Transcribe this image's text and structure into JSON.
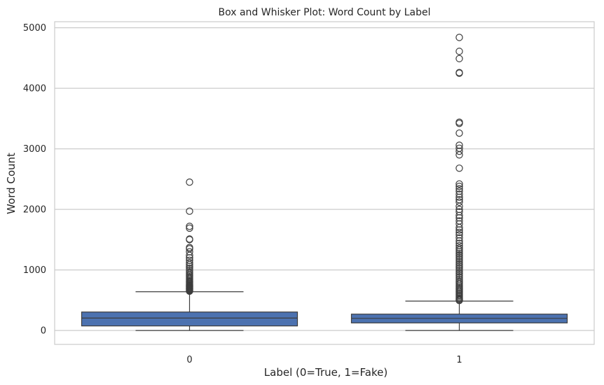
{
  "chart_data": {
    "type": "box",
    "title": "Box and Whisker Plot: Word Count by Label",
    "xlabel": "Label (0=True, 1=Fake)",
    "ylabel": "Word Count",
    "ylim": [
      -230,
      5100
    ],
    "yticks": [
      0,
      1000,
      2000,
      3000,
      4000,
      5000
    ],
    "grid": true,
    "box_color": "#4c72b0",
    "line_color": "#3d3d3d",
    "categories": [
      "0",
      "1"
    ],
    "boxes": [
      {
        "category": "0",
        "whisker_low": 0,
        "q1": 75,
        "median": 205,
        "q3": 305,
        "whisker_high": 640,
        "outliers": [
          650,
          660,
          670,
          680,
          690,
          700,
          710,
          720,
          730,
          740,
          750,
          760,
          775,
          790,
          805,
          820,
          840,
          860,
          880,
          900,
          920,
          945,
          970,
          1000,
          1030,
          1060,
          1090,
          1120,
          1160,
          1200,
          1240,
          1300,
          1350,
          1370,
          1500,
          1510,
          1690,
          1720,
          1970,
          2450
        ]
      },
      {
        "category": "1",
        "whisker_low": 0,
        "q1": 125,
        "median": 200,
        "q3": 270,
        "whisker_high": 485,
        "outliers": [
          495,
          510,
          525,
          540,
          560,
          580,
          600,
          620,
          640,
          660,
          680,
          700,
          720,
          745,
          770,
          795,
          820,
          850,
          880,
          910,
          940,
          970,
          1000,
          1030,
          1060,
          1090,
          1120,
          1150,
          1180,
          1210,
          1240,
          1270,
          1300,
          1330,
          1360,
          1400,
          1440,
          1480,
          1530,
          1580,
          1620,
          1660,
          1700,
          1760,
          1810,
          1860,
          1900,
          1960,
          2000,
          2050,
          2120,
          2160,
          2200,
          2250,
          2300,
          2340,
          2380,
          2420,
          2680,
          2900,
          2960,
          3010,
          3060,
          3260,
          3420,
          3440,
          4250,
          4260,
          4490,
          4610,
          4840
        ]
      }
    ]
  }
}
